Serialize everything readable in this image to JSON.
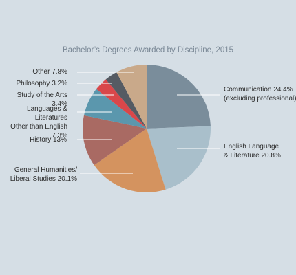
{
  "chart_data": {
    "type": "pie",
    "title": "Bachelor’s Degrees Awarded by Discipline, 2015",
    "categories": [
      "Communication",
      "English Language\n& Literature",
      "General Humanities/\nLiberal Studies",
      "History",
      "Languages & Literatures\nOther than English",
      "Study of the Arts",
      "Philosophy",
      "Other"
    ],
    "values": [
      24.4,
      20.8,
      20.1,
      13,
      7.3,
      3.4,
      3.2,
      7.8
    ],
    "value_labels": [
      "24.4%",
      "20.8%",
      "20.1%",
      "13%",
      "7.3%",
      "3.4%",
      "3.2%",
      "7.8%"
    ],
    "colors": [
      "#7a8d9b",
      "#a9bfcb",
      "#d4935f",
      "#a96a63",
      "#5b97ad",
      "#d9474a",
      "#555b63",
      "#c9a98a"
    ],
    "annotation": "(excluding professional)"
  }
}
